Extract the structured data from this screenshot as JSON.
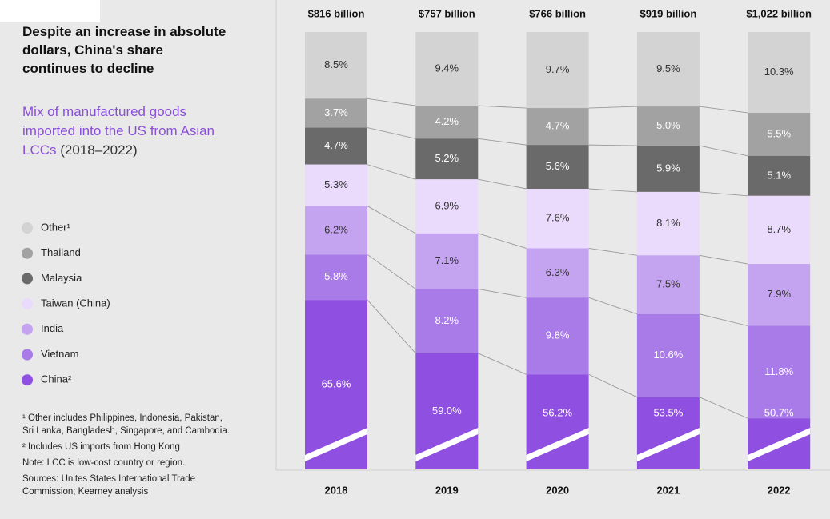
{
  "chart_data": {
    "type": "stacked_bar",
    "title": "Despite an increase in absolute dollars, China's share continues to decline",
    "subtitle": "Mix of manufactured goods imported into the US from Asian LCCs",
    "period": "(2018–2022)",
    "categories": [
      "2018",
      "2019",
      "2020",
      "2021",
      "2022"
    ],
    "totals": {
      "values": [
        816,
        757,
        766,
        919,
        1022
      ],
      "value_labels": [
        "$816 billion",
        "$757 billion",
        "$766 billion",
        "$919 billion",
        "$1,022 billion"
      ]
    },
    "series": [
      {
        "name": "China²",
        "color": "#8f4fe0",
        "values": [
          65.6,
          59.0,
          56.2,
          53.5,
          50.7
        ],
        "value_labels": [
          "65.6%",
          "59.0%",
          "56.2%",
          "53.5%",
          "50.7%"
        ]
      },
      {
        "name": "Vietnam",
        "color": "#a87be9",
        "values": [
          5.8,
          8.2,
          9.8,
          10.6,
          11.8
        ],
        "value_labels": [
          "5.8%",
          "8.2%",
          "9.8%",
          "10.6%",
          "11.8%"
        ]
      },
      {
        "name": "India",
        "color": "#c4a3f0",
        "values": [
          6.2,
          7.1,
          6.3,
          7.5,
          7.9
        ],
        "value_labels": [
          "6.2%",
          "7.1%",
          "6.3%",
          "7.5%",
          "7.9%"
        ]
      },
      {
        "name": "Taiwan (China)",
        "color": "#eadafb",
        "values": [
          5.3,
          6.9,
          7.6,
          8.1,
          8.7
        ],
        "value_labels": [
          "5.3%",
          "6.9%",
          "7.6%",
          "8.1%",
          "8.7%"
        ]
      },
      {
        "name": "Malaysia",
        "color": "#6a6a6a",
        "values": [
          4.7,
          5.2,
          5.6,
          5.9,
          5.1
        ],
        "value_labels": [
          "4.7%",
          "5.2%",
          "5.6%",
          "5.9%",
          "5.1%"
        ]
      },
      {
        "name": "Thailand",
        "color": "#a2a2a2",
        "values": [
          3.7,
          4.2,
          4.7,
          5.0,
          5.5
        ],
        "value_labels": [
          "3.7%",
          "4.2%",
          "4.7%",
          "5.0%",
          "5.5%"
        ]
      },
      {
        "name": "Other¹",
        "color": "#d3d3d3",
        "values": [
          8.5,
          9.4,
          9.7,
          9.5,
          10.3
        ],
        "value_labels": [
          "8.5%",
          "9.4%",
          "9.7%",
          "9.5%",
          "10.3%"
        ]
      }
    ],
    "notes": [
      "¹ Other includes Philippines, Indonesia, Pakistan, Sri Lanka, Bangladesh, Singapore, and Cambodia.",
      "² Includes US imports from Hong Kong",
      "Note: LCC is low-cost country or region.",
      "Sources: Unites States International Trade Commission; Kearney analysis"
    ]
  }
}
